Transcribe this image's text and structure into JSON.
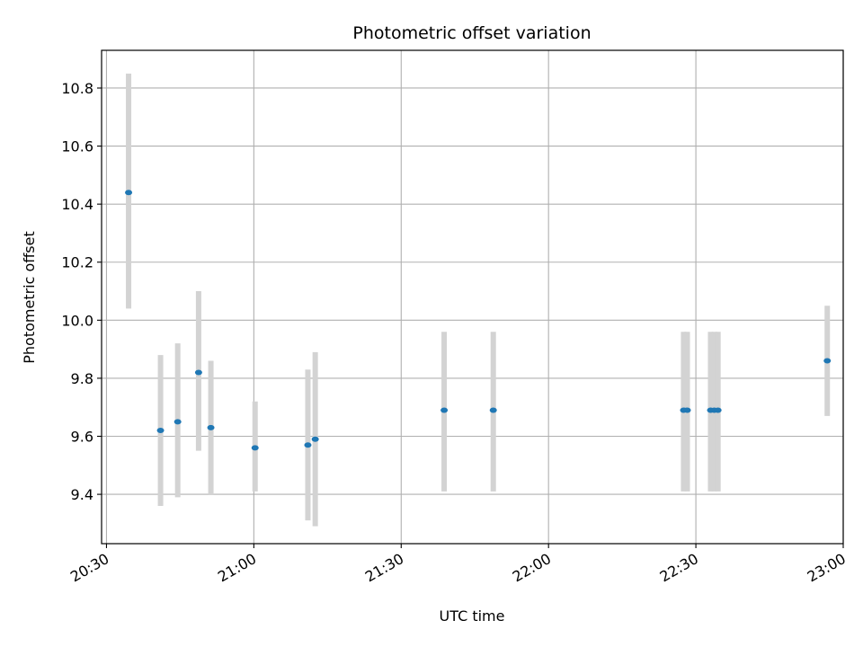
{
  "chart_data": {
    "type": "scatter",
    "title": "Photometric offset variation",
    "xlabel": "UTC time",
    "ylabel": "Photometric offset",
    "grid": true,
    "legend": "none",
    "x_ticks": [
      "20:30",
      "21:00",
      "21:30",
      "22:00",
      "22:30",
      "23:00"
    ],
    "y_ticks": [
      "9.4",
      "9.6",
      "9.8",
      "10.0",
      "10.2",
      "10.4",
      "10.6",
      "10.8"
    ],
    "xlim": [
      "20:29",
      "23:00"
    ],
    "ylim": [
      9.23,
      10.93
    ],
    "series": [
      {
        "marker_color": "#1f77b4",
        "errorbar_color": "#d3d3d3",
        "points": [
          {
            "x": "20:34:30",
            "y": 10.44,
            "err_low": 10.04,
            "err_high": 10.85
          },
          {
            "x": "20:41:00",
            "y": 9.62,
            "err_low": 9.36,
            "err_high": 9.88
          },
          {
            "x": "20:44:30",
            "y": 9.65,
            "err_low": 9.39,
            "err_high": 9.92
          },
          {
            "x": "20:48:45",
            "y": 9.82,
            "err_low": 9.55,
            "err_high": 10.1
          },
          {
            "x": "20:51:15",
            "y": 9.63,
            "err_low": 9.4,
            "err_high": 9.86
          },
          {
            "x": "21:00:15",
            "y": 9.56,
            "err_low": 9.41,
            "err_high": 9.72
          },
          {
            "x": "21:11:00",
            "y": 9.57,
            "err_low": 9.31,
            "err_high": 9.83
          },
          {
            "x": "21:12:30",
            "y": 9.59,
            "err_low": 9.29,
            "err_high": 9.89
          },
          {
            "x": "21:38:45",
            "y": 9.69,
            "err_low": 9.41,
            "err_high": 9.96
          },
          {
            "x": "21:48:45",
            "y": 9.69,
            "err_low": 9.41,
            "err_high": 9.96
          },
          {
            "x": "22:27:30",
            "y": 9.69,
            "err_low": 9.41,
            "err_high": 9.96
          },
          {
            "x": "22:28:15",
            "y": 9.69,
            "err_low": 9.41,
            "err_high": 9.96
          },
          {
            "x": "22:33:00",
            "y": 9.69,
            "err_low": 9.41,
            "err_high": 9.96
          },
          {
            "x": "22:33:45",
            "y": 9.69,
            "err_low": 9.41,
            "err_high": 9.96
          },
          {
            "x": "22:34:30",
            "y": 9.69,
            "err_low": 9.41,
            "err_high": 9.96
          },
          {
            "x": "22:56:45",
            "y": 9.86,
            "err_low": 9.67,
            "err_high": 10.05
          }
        ]
      }
    ]
  }
}
